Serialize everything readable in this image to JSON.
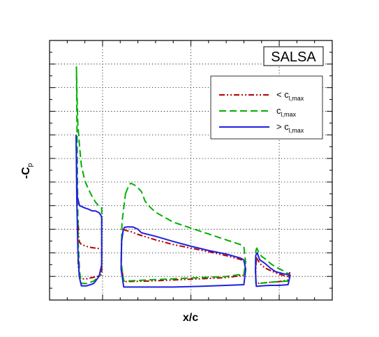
{
  "chart_data": {
    "type": "line",
    "title": "",
    "tag": "SALSA",
    "xlabel": "x/c",
    "ylabel_main": "-C",
    "ylabel_sub": "p",
    "grid": true,
    "legend_placement": "top-right",
    "xlim": [
      -0.3,
      1.3
    ],
    "ylim": [
      -1,
      10
    ],
    "x_major_ticks": [
      0,
      0.5,
      1.0
    ],
    "y_ticks": [
      0,
      1,
      2,
      3,
      4,
      5,
      6,
      7,
      8,
      9,
      10
    ],
    "series": [
      {
        "prefix": "< c",
        "sub": "l,max",
        "color": "#b30000",
        "dash": "8 3 2 3 2 3",
        "segments": [
          [
            [
              -0.141,
              2.0
            ],
            [
              -0.138,
              2.4
            ],
            [
              -0.135,
              1.6
            ],
            [
              -0.13,
              1.45
            ],
            [
              -0.12,
              1.35
            ],
            [
              -0.1,
              1.3
            ],
            [
              -0.08,
              1.25
            ],
            [
              -0.06,
              1.22
            ],
            [
              -0.04,
              1.2
            ],
            [
              -0.02,
              1.18
            ],
            [
              -0.005,
              1.15
            ],
            [
              -0.005,
              0.2
            ],
            [
              -0.01,
              0.05
            ],
            [
              -0.03,
              0.0
            ],
            [
              -0.06,
              -0.05
            ],
            [
              -0.09,
              -0.1
            ],
            [
              -0.11,
              -0.1
            ],
            [
              -0.13,
              -0.05
            ],
            [
              -0.138,
              0.5
            ],
            [
              -0.141,
              2.0
            ]
          ],
          [
            [
              0.118,
              2.0
            ],
            [
              0.13,
              1.95
            ],
            [
              0.16,
              1.9
            ],
            [
              0.2,
              1.78
            ],
            [
              0.3,
              1.55
            ],
            [
              0.4,
              1.35
            ],
            [
              0.5,
              1.2
            ],
            [
              0.6,
              1.05
            ],
            [
              0.7,
              0.88
            ],
            [
              0.78,
              0.72
            ],
            [
              0.8,
              0.65
            ],
            [
              0.81,
              0.3
            ],
            [
              0.8,
              0.05
            ],
            [
              0.7,
              -0.05
            ],
            [
              0.55,
              -0.1
            ],
            [
              0.4,
              -0.15
            ],
            [
              0.25,
              -0.2
            ],
            [
              0.12,
              -0.22
            ],
            [
              0.105,
              0.5
            ],
            [
              0.108,
              1.6
            ],
            [
              0.118,
              2.0
            ]
          ],
          [
            [
              0.87,
              0.8
            ],
            [
              0.89,
              0.55
            ],
            [
              0.92,
              0.35
            ],
            [
              0.95,
              0.25
            ],
            [
              0.98,
              0.15
            ],
            [
              1.02,
              0.05
            ],
            [
              1.05,
              0.0
            ],
            [
              1.06,
              0.2
            ],
            [
              1.05,
              -0.15
            ],
            [
              1.0,
              -0.22
            ],
            [
              0.95,
              -0.25
            ],
            [
              0.9,
              -0.28
            ],
            [
              0.868,
              -0.3
            ],
            [
              0.867,
              0.2
            ],
            [
              0.87,
              0.8
            ]
          ]
        ]
      },
      {
        "prefix": "c",
        "sub": "l,max",
        "color": "#00b000",
        "dash": "10 5",
        "segments": [
          [
            [
              -0.148,
              8.9
            ],
            [
              -0.145,
              7.8
            ],
            [
              -0.14,
              6.5
            ],
            [
              -0.13,
              5.5
            ],
            [
              -0.12,
              4.7
            ],
            [
              -0.1,
              4.05
            ],
            [
              -0.08,
              3.7
            ],
            [
              -0.06,
              3.4
            ],
            [
              -0.04,
              3.15
            ],
            [
              -0.02,
              2.98
            ],
            [
              -0.005,
              2.9
            ],
            [
              -0.005,
              0.4
            ],
            [
              -0.02,
              0.0
            ],
            [
              -0.05,
              -0.2
            ],
            [
              -0.09,
              -0.3
            ],
            [
              -0.12,
              -0.3
            ],
            [
              -0.13,
              0.2
            ],
            [
              -0.138,
              1.5
            ],
            [
              -0.142,
              4.0
            ],
            [
              -0.148,
              8.9
            ]
          ],
          [
            [
              0.13,
              3.5
            ],
            [
              0.14,
              3.7
            ],
            [
              0.15,
              3.88
            ],
            [
              0.16,
              3.95
            ],
            [
              0.18,
              3.88
            ],
            [
              0.2,
              3.75
            ],
            [
              0.22,
              3.6
            ],
            [
              0.24,
              3.2
            ],
            [
              0.26,
              3.0
            ],
            [
              0.3,
              2.72
            ],
            [
              0.4,
              2.3
            ],
            [
              0.5,
              2.05
            ],
            [
              0.6,
              1.8
            ],
            [
              0.7,
              1.55
            ],
            [
              0.78,
              1.35
            ],
            [
              0.8,
              1.25
            ],
            [
              0.81,
              0.6
            ],
            [
              0.8,
              0.1
            ],
            [
              0.7,
              0.0
            ],
            [
              0.55,
              -0.05
            ],
            [
              0.4,
              -0.1
            ],
            [
              0.25,
              -0.15
            ],
            [
              0.12,
              -0.2
            ],
            [
              0.105,
              0.6
            ],
            [
              0.11,
              2.3
            ],
            [
              0.13,
              3.5
            ]
          ],
          [
            [
              0.868,
              1.1
            ],
            [
              0.873,
              1.2
            ],
            [
              0.88,
              1.08
            ],
            [
              0.9,
              0.85
            ],
            [
              0.92,
              0.75
            ],
            [
              0.95,
              0.55
            ],
            [
              0.98,
              0.4
            ],
            [
              1.02,
              0.25
            ],
            [
              1.05,
              0.12
            ],
            [
              1.06,
              0.05
            ],
            [
              1.05,
              -0.2
            ],
            [
              1.0,
              -0.22
            ],
            [
              0.95,
              -0.25
            ],
            [
              0.9,
              -0.28
            ],
            [
              0.868,
              -0.3
            ],
            [
              0.865,
              0.3
            ],
            [
              0.868,
              1.1
            ]
          ]
        ]
      },
      {
        "prefix": "> c",
        "sub": "l,max",
        "color": "#2020e0",
        "dash": "",
        "segments": [
          [
            [
              -0.15,
              6.0
            ],
            [
              -0.148,
              5.2
            ],
            [
              -0.146,
              4.2
            ],
            [
              -0.143,
              3.4
            ],
            [
              -0.13,
              3.0
            ],
            [
              -0.1,
              2.9
            ],
            [
              -0.08,
              2.85
            ],
            [
              -0.06,
              2.78
            ],
            [
              -0.04,
              2.78
            ],
            [
              -0.02,
              2.7
            ],
            [
              -0.01,
              2.6
            ],
            [
              -0.005,
              2.5
            ],
            [
              -0.005,
              0.5
            ],
            [
              -0.02,
              0.0
            ],
            [
              -0.05,
              -0.3
            ],
            [
              -0.09,
              -0.4
            ],
            [
              -0.12,
              -0.4
            ],
            [
              -0.132,
              0.0
            ],
            [
              -0.14,
              1.2
            ],
            [
              -0.146,
              3.3
            ],
            [
              -0.15,
              6.0
            ]
          ],
          [
            [
              0.118,
              2.0
            ],
            [
              0.125,
              2.08
            ],
            [
              0.14,
              2.1
            ],
            [
              0.17,
              2.1
            ],
            [
              0.2,
              2.0
            ],
            [
              0.22,
              1.85
            ],
            [
              0.3,
              1.7
            ],
            [
              0.4,
              1.48
            ],
            [
              0.5,
              1.28
            ],
            [
              0.6,
              1.1
            ],
            [
              0.7,
              0.95
            ],
            [
              0.78,
              0.78
            ],
            [
              0.8,
              0.7
            ],
            [
              0.81,
              0.3
            ],
            [
              0.8,
              -0.35
            ],
            [
              0.7,
              -0.38
            ],
            [
              0.55,
              -0.42
            ],
            [
              0.4,
              -0.45
            ],
            [
              0.25,
              -0.45
            ],
            [
              0.12,
              -0.45
            ],
            [
              0.105,
              0.3
            ],
            [
              0.108,
              1.5
            ],
            [
              0.118,
              2.0
            ]
          ],
          [
            [
              0.867,
              0.9
            ],
            [
              0.875,
              1.0
            ],
            [
              0.89,
              0.7
            ],
            [
              0.92,
              0.55
            ],
            [
              0.95,
              0.35
            ],
            [
              0.98,
              0.2
            ],
            [
              1.02,
              0.12
            ],
            [
              1.05,
              0.08
            ],
            [
              1.062,
              0.05
            ],
            [
              1.05,
              -0.35
            ],
            [
              1.0,
              -0.38
            ],
            [
              0.95,
              -0.38
            ],
            [
              0.9,
              -0.4
            ],
            [
              0.87,
              -0.42
            ],
            [
              0.866,
              0.2
            ],
            [
              0.867,
              0.9
            ]
          ]
        ]
      }
    ]
  }
}
